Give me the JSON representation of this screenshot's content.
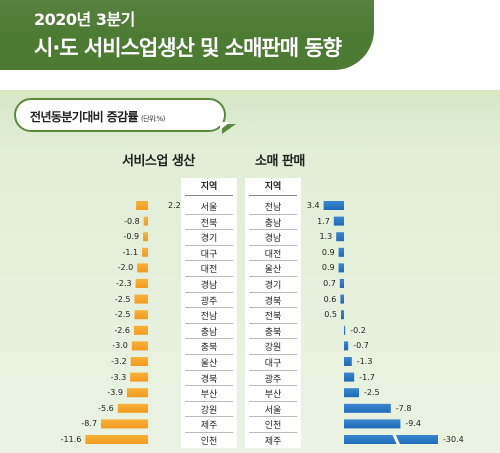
{
  "header": {
    "subtitle": "2020년 3분기",
    "title": "시·도 서비스업생산 및 소매판매 동향"
  },
  "bubble": {
    "label": "전년동분기대비 증감률",
    "unit": "(단위:%)"
  },
  "colors": {
    "header_bg": "#4c7b34",
    "service_bar": "#f39a1f",
    "retail_bar": "#1f6bb8"
  },
  "chart_data": [
    {
      "type": "bar",
      "title": "서비스업 생산",
      "region_header": "지역",
      "categories": [
        "서울",
        "전북",
        "경기",
        "대구",
        "대전",
        "경남",
        "광주",
        "전남",
        "충남",
        "충북",
        "울산",
        "경북",
        "부산",
        "강원",
        "제주",
        "인천"
      ],
      "values": [
        2.2,
        -0.8,
        -0.9,
        -1.1,
        -2.0,
        -2.3,
        -2.5,
        -2.5,
        -2.6,
        -3.0,
        -3.2,
        -3.3,
        -3.9,
        -5.6,
        -8.7,
        -11.6
      ],
      "labels": [
        "2.2",
        "-0.8",
        "-0.9",
        "-1.1",
        "-2.0",
        "-2.3",
        "-2.5",
        "-2.5",
        "-2.6",
        "-3.0",
        "-3.2",
        "-3.3",
        "-3.9",
        "-5.6",
        "-8.7",
        "-11.6"
      ],
      "orientation": "horizontal"
    },
    {
      "type": "bar",
      "title": "소매 판매",
      "region_header": "지역",
      "categories": [
        "전남",
        "충남",
        "경남",
        "대전",
        "울산",
        "경기",
        "경북",
        "전북",
        "충북",
        "강원",
        "대구",
        "광주",
        "부산",
        "서울",
        "인천",
        "제주"
      ],
      "values": [
        3.4,
        1.7,
        1.3,
        0.9,
        0.9,
        0.7,
        0.6,
        0.5,
        -0.2,
        -0.7,
        -1.3,
        -1.7,
        -2.5,
        -7.8,
        -9.4,
        -30.4
      ],
      "labels": [
        "3.4",
        "1.7",
        "1.3",
        "0.9",
        "0.9",
        "0.7",
        "0.6",
        "0.5",
        "-0.2",
        "-0.7",
        "-1.3",
        "-1.7",
        "-2.5",
        "-7.8",
        "-9.4",
        "-30.4"
      ],
      "orientation": "horizontal",
      "axis_break_on": "제주"
    }
  ]
}
